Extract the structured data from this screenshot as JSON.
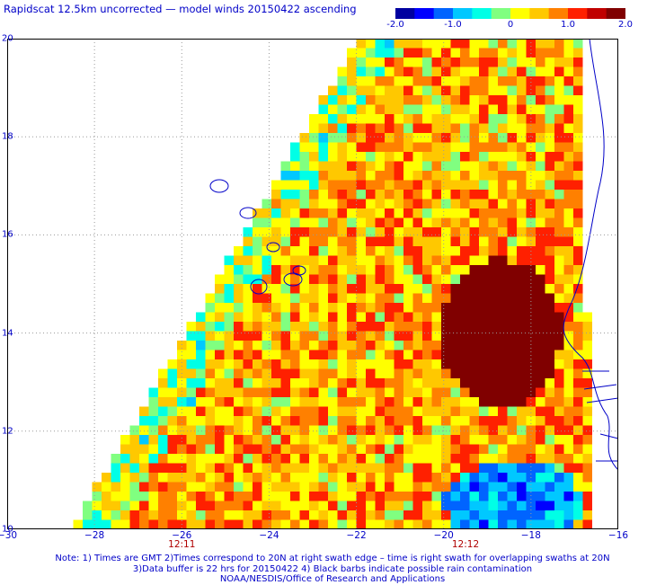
{
  "header": {
    "title": "Rapidscat 12.5km uncorrected — model winds 20150422 ascending"
  },
  "colorbar": {
    "labels": [
      "-2.0",
      "-1.0",
      "0",
      "1.0",
      "2.0"
    ],
    "min": -2.0,
    "max": 2.0,
    "colors": [
      "#0000a0",
      "#0000ff",
      "#0064ff",
      "#00c8ff",
      "#00ffe6",
      "#80ff80",
      "#ffff00",
      "#ffc800",
      "#ff8000",
      "#ff2000",
      "#c00000",
      "#800000"
    ]
  },
  "map": {
    "lon_range": [
      -30,
      -16
    ],
    "lat_range": [
      10,
      20
    ],
    "x_ticks": [
      {
        "value": -30,
        "label": "−30"
      },
      {
        "value": -28,
        "label": "−28"
      },
      {
        "value": -26,
        "label": "−26"
      },
      {
        "value": -24,
        "label": "−24"
      },
      {
        "value": -22,
        "label": "−22"
      },
      {
        "value": -20,
        "label": "−20"
      },
      {
        "value": -18,
        "label": "−18"
      },
      {
        "value": -16,
        "label": "−16"
      }
    ],
    "y_ticks": [
      {
        "value": 20,
        "label": "20"
      },
      {
        "value": 18,
        "label": "18"
      },
      {
        "value": 16,
        "label": "16"
      },
      {
        "value": 14,
        "label": "14"
      },
      {
        "value": 12,
        "label": "12"
      },
      {
        "value": 10,
        "label": "10"
      }
    ],
    "time_labels": [
      {
        "lon": -26,
        "label": "12:11"
      },
      {
        "lon": -19.5,
        "label": "12:12"
      }
    ],
    "colors": {
      "land_outline": "#0000c8",
      "grid": "#9a9a9a",
      "axis": "#000000"
    }
  },
  "footer": {
    "line1": "Note: 1) Times are GMT 2)Times correspond to 20N at right swath edge – time is right swath for overlapping swaths at 20N",
    "line2": "3)Data buffer is 22 hrs for 20150422 4) Black barbs indicate possible rain contamination",
    "line3": "NOAA/NESDIS/Office of Research and Applications"
  }
}
